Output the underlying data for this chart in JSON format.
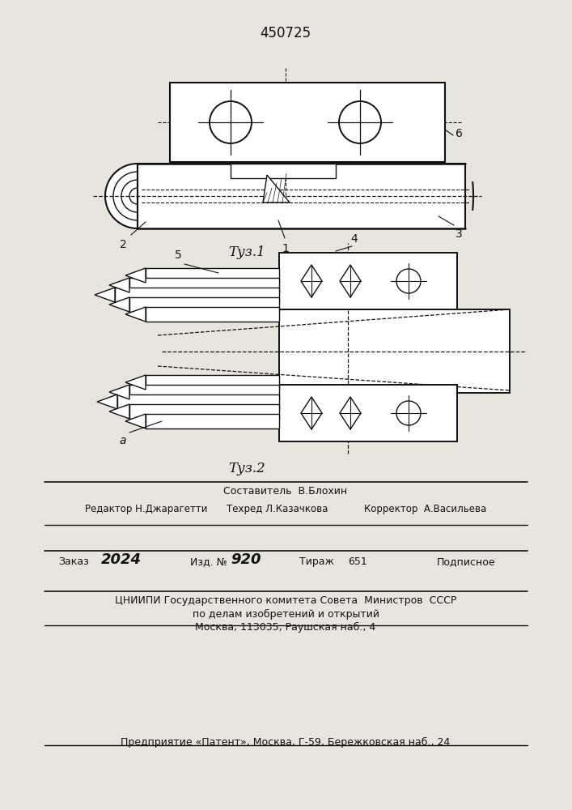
{
  "title_number": "450725",
  "fig1_caption": "Τуз.1",
  "fig2_caption": "Τуз.2",
  "footer_line0": "Составитель  В.Блохин",
  "footer_line1a": "Редактор Н.Джарагетти",
  "footer_line1b": "Техред Л.Казачкова",
  "footer_line1c": "Корректор  А.Васильева",
  "footer_zakas": "Заказ",
  "footer_zakas_num": "2024",
  "footer_izd": "Изд. №",
  "footer_izd_num": "920",
  "footer_tirazh": "Тираж",
  "footer_tirazh_num": "651",
  "footer_podpisnoe": "Подписное",
  "footer_cniip1": "ЦНИИПИ Государственного комитета Совета  Министров  СССР",
  "footer_cniip2": "по делам изобретений и открытий",
  "footer_cniip3": "Москва, 113035, Раушская наб., 4",
  "footer_predpr": "Предприятие «Патент», Москва, Г-59, Бережковская наб., 24",
  "bg": "#e8e5de",
  "lc": "#111111"
}
